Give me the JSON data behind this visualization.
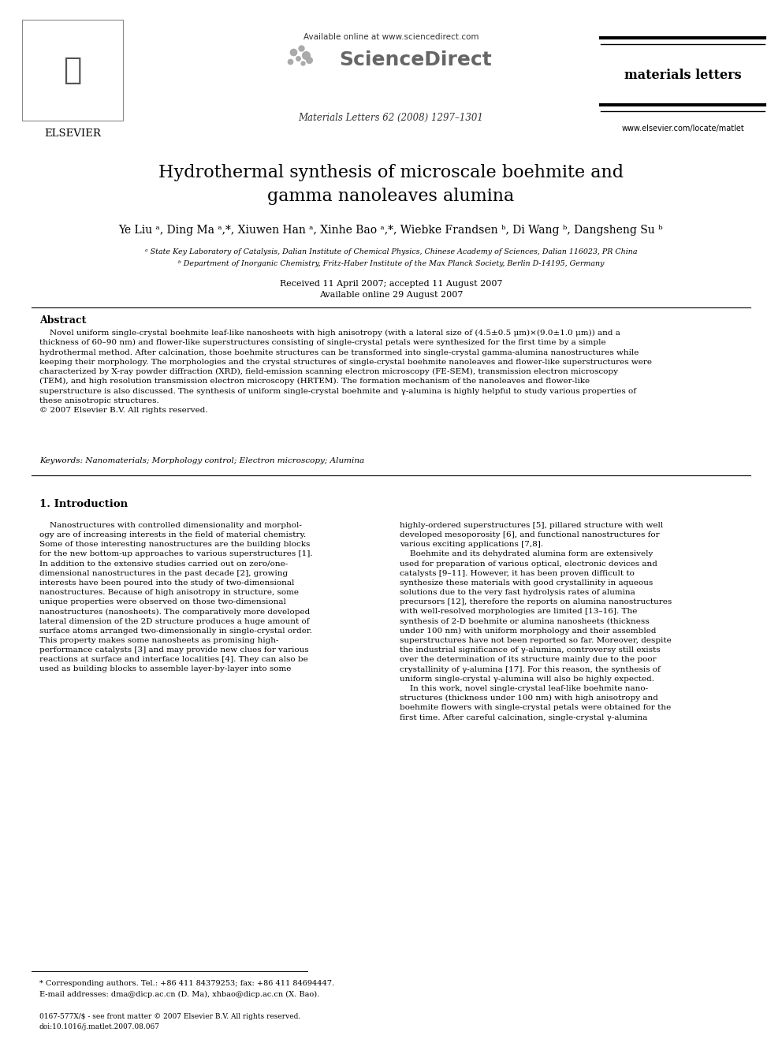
{
  "page_bg": "#ffffff",
  "title_line1": "Hydrothermal synthesis of microscale boehmite and",
  "title_line2": "gamma nanoleaves alumina",
  "authors": "Ye Liu ᵃ, Ding Ma ᵃ,*, Xiuwen Han ᵃ, Xinhe Bao ᵃ,*, Wiebke Frandsen ᵇ, Di Wang ᵇ, Dangsheng Su ᵇ",
  "affil_a": "ᵃ State Key Laboratory of Catalysis, Dalian Institute of Chemical Physics, Chinese Academy of Sciences, Dalian 116023, PR China",
  "affil_b": "ᵇ Department of Inorganic Chemistry, Fritz-Haber Institute of the Max Planck Society, Berlin D-14195, Germany",
  "date1": "Received 11 April 2007; accepted 11 August 2007",
  "date2": "Available online 29 August 2007",
  "journal_header": "Available online at www.sciencedirect.com",
  "journal_name": "ScienceDirect",
  "journal_issue": "Materials Letters 62 (2008) 1297–1301",
  "journal_brand": "materials letters",
  "journal_url": "www.elsevier.com/locate/matlet",
  "elsevier_text": "ELSEVIER",
  "abstract_title": "Abstract",
  "keywords_line": "Keywords: Nanomaterials; Morphology control; Electron microscopy; Alumina",
  "section1_title": "1. Introduction",
  "footnote1": "* Corresponding authors. Tel.: +86 411 84379253; fax: +86 411 84694447.",
  "footnote2": "E-mail addresses: dma@dicp.ac.cn (D. Ma), xhbao@dicp.ac.cn (X. Bao).",
  "footer1": "0167-577X/$ - see front matter © 2007 Elsevier B.V. All rights reserved.",
  "footer2": "doi:10.1016/j.matlet.2007.08.067"
}
